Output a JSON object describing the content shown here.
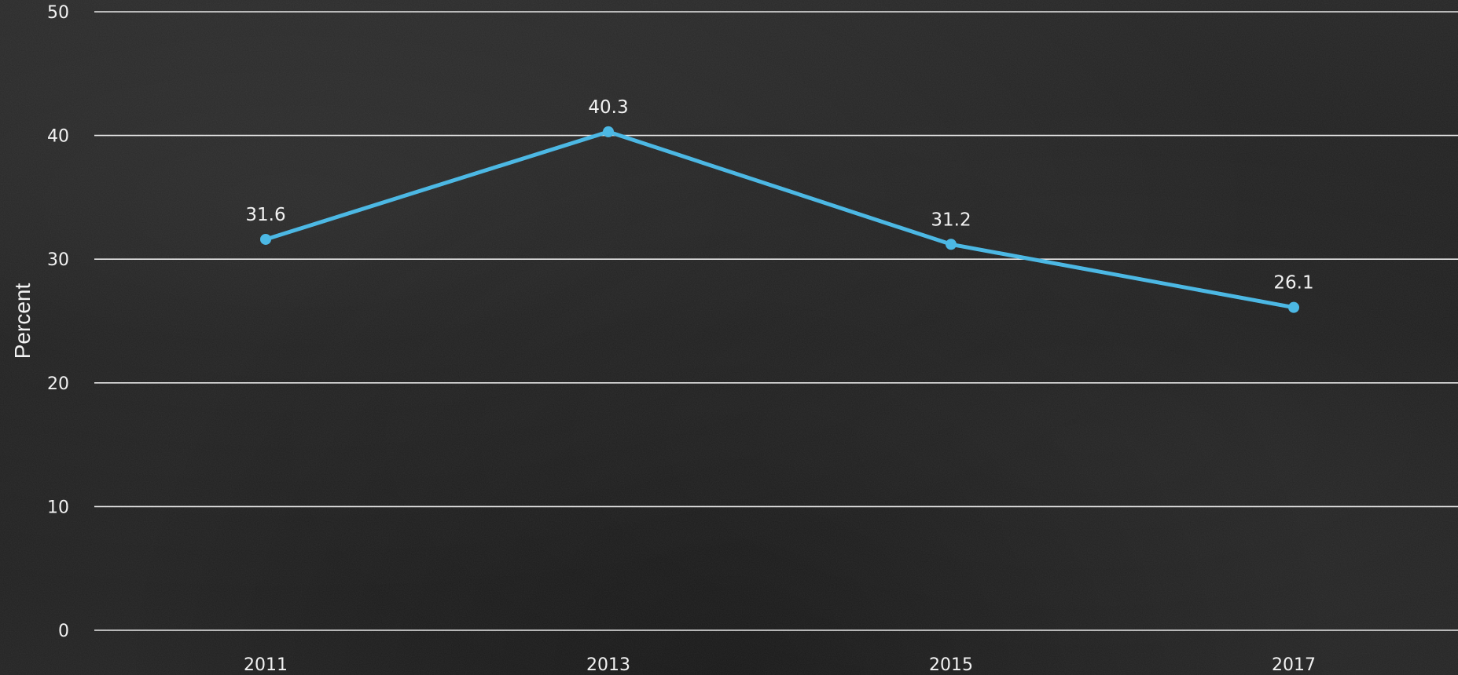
{
  "chart_data": {
    "type": "line",
    "categories": [
      "2011",
      "2013",
      "2015",
      "2017"
    ],
    "series": [
      {
        "values": [
          31.6,
          40.3,
          31.2,
          26.1
        ]
      }
    ],
    "data_labels": [
      "31.6",
      "40.3",
      "31.2",
      "26.1"
    ],
    "ylabel": "Percent",
    "ylim": [
      0,
      50
    ],
    "yticks": [
      "0",
      "10",
      "20",
      "30",
      "40",
      "50"
    ],
    "grid": true,
    "line_color": "#4cb8e4"
  }
}
